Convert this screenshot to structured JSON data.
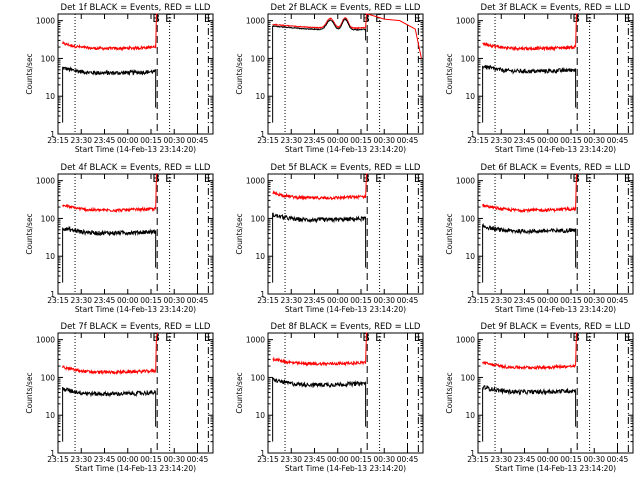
{
  "common": {
    "ylabel": "Counts/sec",
    "xlabel": "Start Time (14-Feb-13 23:14:20)",
    "x_ticks": [
      "23:15",
      "23:30",
      "23:45",
      "00:00",
      "00:15",
      "00:30",
      "00:45"
    ],
    "x_tick_minutes": [
      0,
      15,
      30,
      45,
      60,
      75,
      90
    ],
    "x_range_minutes": [
      0,
      100
    ],
    "y_ticks": [
      "1",
      "10",
      "100",
      "1000"
    ],
    "y_tick_values": [
      1,
      10,
      100,
      1000
    ],
    "ylim": [
      1,
      1500
    ],
    "y_scale": "log",
    "colors": {
      "events": "#000000",
      "lld": "#ff0000"
    },
    "annotation_labels": [
      "B",
      "E",
      "E"
    ]
  },
  "chart_data": [
    {
      "type": "line",
      "title": "Det 1f BLACK = Events, RED = LLD",
      "events_level": 45,
      "lld_level": 200,
      "segment_minutes": [
        3,
        63
      ],
      "dotted_lines_minutes": [
        11,
        72
      ],
      "dashed_lines_minutes": [
        64,
        90
      ],
      "dashdot_lines_minutes": [
        97
      ],
      "labels_minutes": [
        64,
        72,
        97
      ]
    },
    {
      "type": "line",
      "title": "Det 2f BLACK = Events, RED = LLD",
      "events_level": 500,
      "lld_level": 500,
      "segment_minutes": [
        3,
        63
      ],
      "dotted_lines_minutes": [
        11,
        72
      ],
      "dashed_lines_minutes": [
        64,
        90
      ],
      "dashdot_lines_minutes": [
        97
      ],
      "labels_minutes": [
        64,
        72,
        97
      ]
    },
    {
      "type": "line",
      "title": "Det 3f BLACK = Events, RED = LLD",
      "events_level": 50,
      "lld_level": 200,
      "segment_minutes": [
        3,
        63
      ],
      "dotted_lines_minutes": [
        11,
        72
      ],
      "dashed_lines_minutes": [
        64,
        90
      ],
      "dashdot_lines_minutes": [
        97
      ],
      "labels_minutes": [
        64,
        72,
        97
      ]
    },
    {
      "type": "line",
      "title": "Det 4f BLACK = Events, RED = LLD",
      "events_level": 45,
      "lld_level": 180,
      "segment_minutes": [
        3,
        63
      ],
      "dotted_lines_minutes": [
        11,
        72
      ],
      "dashed_lines_minutes": [
        64,
        90
      ],
      "dashdot_lines_minutes": [
        97
      ],
      "labels_minutes": [
        64,
        72,
        97
      ]
    },
    {
      "type": "line",
      "title": "Det 5f BLACK = Events, RED = LLD",
      "events_level": 100,
      "lld_level": 380,
      "segment_minutes": [
        3,
        63
      ],
      "dotted_lines_minutes": [
        11,
        72
      ],
      "dashed_lines_minutes": [
        64,
        90
      ],
      "dashdot_lines_minutes": [
        97
      ],
      "labels_minutes": [
        64,
        72,
        97
      ]
    },
    {
      "type": "line",
      "title": "Det 6f BLACK = Events, RED = LLD",
      "events_level": 50,
      "lld_level": 180,
      "segment_minutes": [
        3,
        63
      ],
      "dotted_lines_minutes": [
        11,
        72
      ],
      "dashed_lines_minutes": [
        64,
        90
      ],
      "dashdot_lines_minutes": [
        97
      ],
      "labels_minutes": [
        64,
        72,
        97
      ]
    },
    {
      "type": "line",
      "title": "Det 7f BLACK = Events, RED = LLD",
      "events_level": 40,
      "lld_level": 150,
      "segment_minutes": [
        3,
        63
      ],
      "dotted_lines_minutes": [
        11,
        72
      ],
      "dashed_lines_minutes": [
        64,
        90
      ],
      "dashdot_lines_minutes": [
        97
      ],
      "labels_minutes": [
        64,
        72,
        97
      ]
    },
    {
      "type": "line",
      "title": "Det 8f BLACK = Events, RED = LLD",
      "events_level": 70,
      "lld_level": 250,
      "segment_minutes": [
        3,
        63
      ],
      "dotted_lines_minutes": [
        11,
        72
      ],
      "dashed_lines_minutes": [
        64,
        90
      ],
      "dashdot_lines_minutes": [
        97
      ],
      "labels_minutes": [
        64,
        72,
        97
      ]
    },
    {
      "type": "line",
      "title": "Det 9f BLACK = Events, RED = LLD",
      "events_level": 45,
      "lld_level": 200,
      "segment_minutes": [
        3,
        63
      ],
      "dotted_lines_minutes": [
        11,
        72
      ],
      "dashed_lines_minutes": [
        64,
        90
      ],
      "dashdot_lines_minutes": [
        97
      ],
      "labels_minutes": [
        64,
        72,
        97
      ]
    }
  ]
}
